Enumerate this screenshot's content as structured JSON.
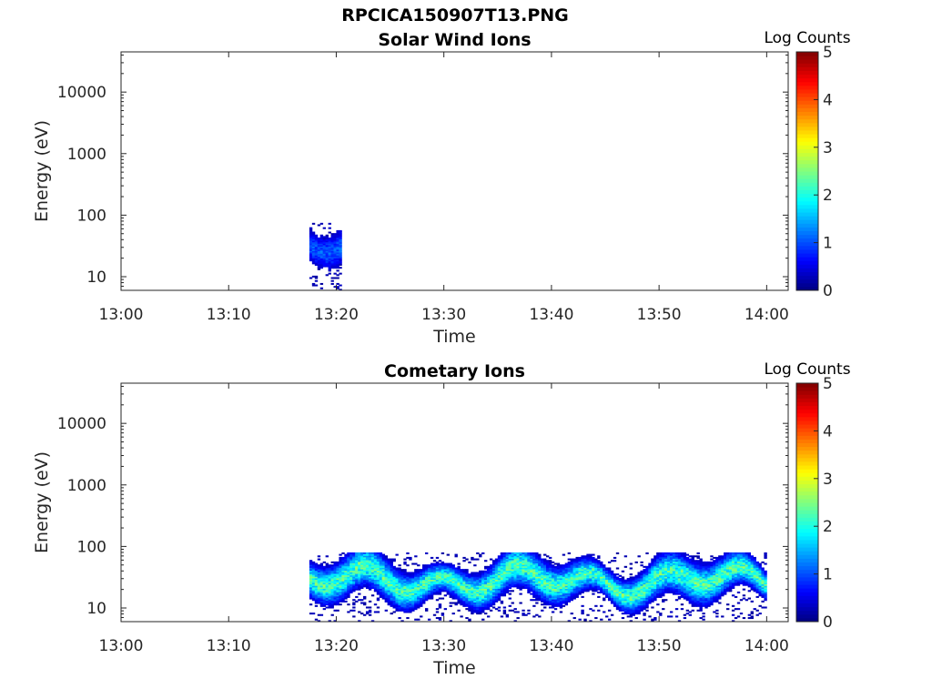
{
  "figure": {
    "title": "RPCICA150907T13.PNG"
  },
  "colors": {
    "axis": "#262626",
    "background": "#ffffff",
    "colormap": "jet"
  },
  "chart_data": [
    {
      "type": "heatmap",
      "title": "Solar Wind Ions",
      "xlabel": "Time",
      "ylabel": "Energy (eV)",
      "x_ticks": [
        "13:00",
        "13:10",
        "13:20",
        "13:30",
        "13:40",
        "13:50",
        "14:00"
      ],
      "y_ticks": [
        "10",
        "100",
        "1000",
        "10000"
      ],
      "y_scale": "log",
      "xlim": [
        "13:00",
        "14:02"
      ],
      "ylim": [
        6,
        45000
      ],
      "colorbar": {
        "label": "Log Counts",
        "ticks": [
          "0",
          "1",
          "2",
          "3",
          "4",
          "5"
        ],
        "range": [
          0,
          5
        ]
      },
      "signal": [
        {
          "t_start_min": 17.5,
          "t_end_min": 20.5,
          "e_low_eV": 6,
          "e_high_eV": 75,
          "e_peak_eV": 30,
          "peak_log_counts": 1.2
        }
      ]
    },
    {
      "type": "heatmap",
      "title": "Cometary Ions",
      "xlabel": "Time",
      "ylabel": "Energy (eV)",
      "x_ticks": [
        "13:00",
        "13:10",
        "13:20",
        "13:30",
        "13:40",
        "13:50",
        "14:00"
      ],
      "y_ticks": [
        "10",
        "100",
        "1000",
        "10000"
      ],
      "y_scale": "log",
      "xlim": [
        "13:00",
        "14:02"
      ],
      "ylim": [
        6,
        45000
      ],
      "colorbar": {
        "label": "Log Counts",
        "ticks": [
          "0",
          "1",
          "2",
          "3",
          "4",
          "5"
        ],
        "range": [
          0,
          5
        ]
      },
      "signal": [
        {
          "t_start_min": 17.5,
          "t_end_min": 60.0,
          "e_low_eV": 6,
          "e_high_eV": 80,
          "e_peak_eV": 28,
          "peak_log_counts": 2.5
        }
      ]
    }
  ]
}
